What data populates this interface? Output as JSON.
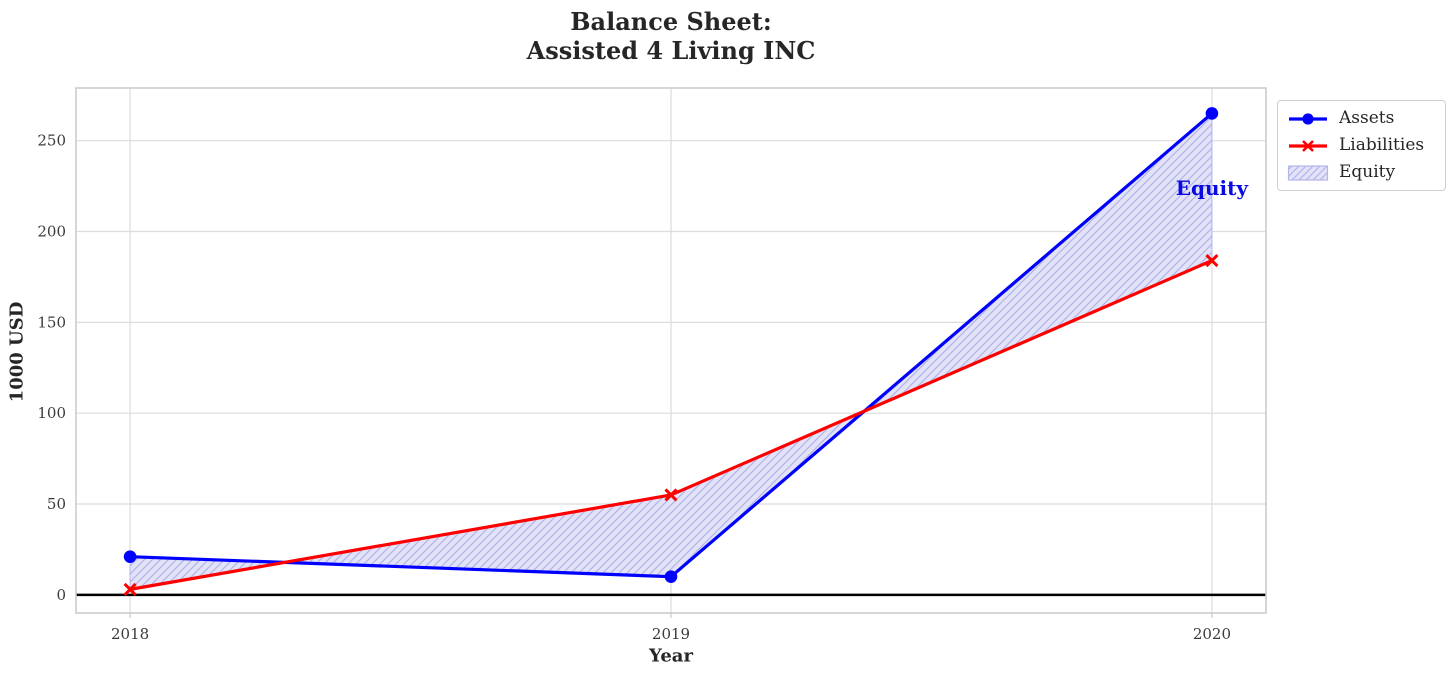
{
  "title": {
    "line1": "Balance Sheet:",
    "line2": "Assisted 4 Living INC"
  },
  "chart_data": {
    "type": "line",
    "title": "Balance Sheet:\nAssisted 4 Living INC",
    "x": [
      2018,
      2019,
      2020
    ],
    "series": [
      {
        "name": "Assets",
        "color": "#0000ff",
        "marker": "circle",
        "values": [
          21,
          10,
          265
        ]
      },
      {
        "name": "Liabilities",
        "color": "#ff0000",
        "marker": "x",
        "values": [
          3,
          55,
          184
        ]
      }
    ],
    "fill_between": {
      "name": "Equity",
      "between": [
        "Assets",
        "Liabilities"
      ],
      "fill_color": "#e3e3f8",
      "hatch_color": "#b4b4ec",
      "hatch": "///"
    },
    "xlabel": "Year",
    "ylabel": "1000 USD",
    "xlim": [
      2017.9,
      2020.1
    ],
    "ylim": [
      -10,
      279
    ],
    "xticks": [
      "2018",
      "2019",
      "2020"
    ],
    "xtick_values": [
      2018,
      2019,
      2020
    ],
    "yticks": [
      "0",
      "50",
      "100",
      "150",
      "200",
      "250"
    ],
    "ytick_values": [
      0,
      50,
      100,
      150,
      200,
      250
    ],
    "grid": true,
    "zero_line": {
      "y": 0,
      "color": "#000000"
    },
    "legend_position": "outside-upper-right",
    "annotation": {
      "text": "Equity",
      "x": 2020.0,
      "y": 224,
      "color": "#0a0ae0"
    }
  },
  "colors": {
    "background": "#ffffff",
    "grid": "#dcdcdc",
    "spine": "#c9c9c9",
    "tick_label": "#3b3b3b",
    "text": "#262626",
    "legend_border": "#cfcfcf"
  }
}
